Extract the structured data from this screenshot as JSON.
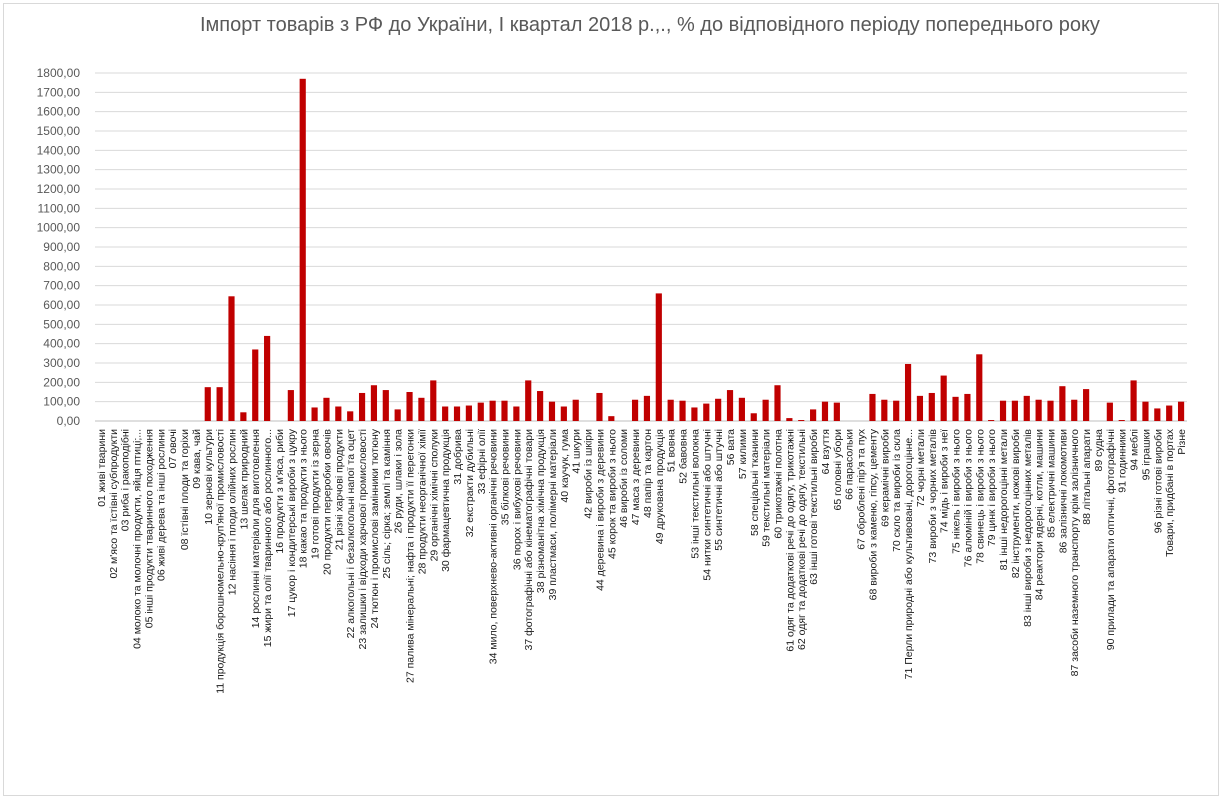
{
  "chart_data": {
    "type": "bar",
    "title": "Імпорт товарів з РФ до України, І квартал 2018 р.,., % до відповідного періоду попереднього року",
    "xlabel": "",
    "ylabel": "",
    "ylim": [
      0,
      1800
    ],
    "y_ticks": [
      "0,00",
      "100,00",
      "200,00",
      "300,00",
      "400,00",
      "500,00",
      "600,00",
      "700,00",
      "800,00",
      "900,00",
      "1000,00",
      "1100,00",
      "1200,00",
      "1300,00",
      "1400,00",
      "1500,00",
      "1600,00",
      "1700,00",
      "1800,00"
    ],
    "grid": true,
    "bar_color": "#c00000",
    "categories": [
      "01 живі тварини",
      "02 м'ясо та їстівні субпродукти",
      "03 риба і ракоподібні",
      "04 молоко та молочні продукти, яйця птиці;...",
      "05 інші продукти тваринного походження",
      "06 живі дерева та інші рослини",
      "07 овочі",
      "08 їстівні плоди та горіхи",
      "09 кава, чай",
      "10 зернові культури",
      "11 продукція борошномельно-круп'яної промисловості",
      "12 насіння і плоди олійних рослин",
      "13 шелак природний",
      "14 рослинні матеріали для виготовлення",
      "15 жири та олії тваринного або рослинного...",
      "16 продукти з м'яса, риби",
      "17 цукор і кондитерські вироби з цукру",
      "18 какао та продукти з нього",
      "19 готові продукти із зерна",
      "20 продукти переробки овочів",
      "21 різні харчові продукти",
      "22 алкогольні і безалкогольні напої та оцет",
      "23 залишки і відходи харчової промисловості",
      "24 тютюн і промислові замінники тютюну",
      "25 сіль; сірка; землі та каміння",
      "26 руди, шлаки і зола",
      "27 палива мінеральні; нафта і продукти її перегонки",
      "28 продукти неорганічної хімії",
      "29 органічні хімічні сполуки",
      "30 фармацевтична продукція",
      "31 добрива",
      "32 екстракти дубильні",
      "33 ефірні олії",
      "34 мило, поверхнево-активні органічні речовини",
      "35 білкові речовини",
      "36 порох і вибухові речовини",
      "37 фотографічні або кінематографічні товари",
      "38 різноманітна хімічна продукція",
      "39 пластмаси, полімерні матеріали",
      "40 каучук, гума",
      "41 шкури",
      "42 вироби із шкіри",
      "44 деревина і вироби з деревини",
      "45 корок та вироби з нього",
      "46 вироби із соломи",
      "47 маса з деревини",
      "48 папір та картон",
      "49 друкована продукція",
      "51 вовна",
      "52 бавовна",
      "53 інші текстильні волокна",
      "54 нитки синтетичні або штучні",
      "55 синтетичні або штучні",
      "56 вата",
      "57 килими",
      "58 спеціальні тканини",
      "59 текстильні матеріали",
      "60 трикотажні полотна",
      "61 одяг та додаткові речі до одягу, трикотажні",
      "62 одяг та додаткові речі до одягу, текстильні",
      "63 інші готові текстильні вироби",
      "64 взуття",
      "65 головні убори",
      "66 парасольки",
      "67 оброблені пір'я та пух",
      "68 вироби з каменю, гіпсу, цементу",
      "69 керамічні вироби",
      "70 скло та вироби із скла",
      "71 Перли природні або культивовані, дорогоцінне...",
      "72 чорні метали",
      "73 вироби з чорних металів",
      "74 мідь і вироби з неї",
      "75 нікель і вироби з нього",
      "76 алюміній і вироби з нього",
      "78 свинець і вироби з нього",
      "79 цинк і вироби з нього",
      "81 інші недорогоцінні метали",
      "82 інструменти, ножові вироби",
      "83 інші вироби з недорогоцінних металів",
      "84 реактори ядерні, котли, машини",
      "85 електричні машини",
      "86 залізничні локомотиви",
      "87 засоби наземного транспорту крім залізничного",
      "88 літальні апарати",
      "89 судна",
      "90 прилади та апарати оптичні, фотографічні",
      "91 годинники",
      "94 меблі",
      "95 іграшки",
      "96 різні готові вироби",
      "Товари, придбані в портах",
      "Різне"
    ],
    "values": [
      0,
      0,
      0,
      0,
      0,
      0,
      0,
      0,
      0,
      175,
      175,
      645,
      45,
      370,
      440,
      0,
      160,
      1770,
      70,
      120,
      75,
      50,
      145,
      185,
      160,
      60,
      150,
      120,
      210,
      75,
      75,
      80,
      95,
      105,
      105,
      75,
      210,
      155,
      100,
      75,
      110,
      0,
      145,
      25,
      0,
      110,
      130,
      660,
      110,
      105,
      70,
      90,
      115,
      160,
      120,
      40,
      110,
      185,
      15,
      5,
      60,
      100,
      95,
      0,
      0,
      140,
      110,
      105,
      295,
      130,
      145,
      235,
      125,
      140,
      345,
      5,
      105,
      105,
      130,
      110,
      105,
      180,
      110,
      165,
      0,
      95,
      5,
      210,
      100,
      65,
      80,
      100
    ]
  }
}
